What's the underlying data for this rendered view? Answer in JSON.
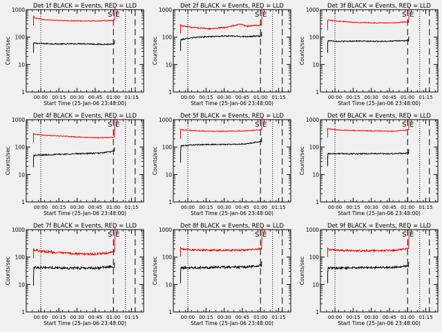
{
  "figure": {
    "background_color": "#f0f0f0",
    "events_color": "#000000",
    "lld_color": "#ff0000",
    "axis_color": "#000000"
  },
  "shared_axes": {
    "ylabel": "Counts/sec",
    "xlabel": "Start Time (25-Jan-06 23:48:00)",
    "ylog": true,
    "ylim": [
      1,
      1000
    ],
    "yticks": [
      "1",
      "10",
      "100",
      "1000"
    ],
    "xunit": "minutes since 23:48:00",
    "xlim": [
      0,
      97
    ],
    "xticks": [
      {
        "label": "00:00",
        "value": 12
      },
      {
        "label": "00:15",
        "value": 27
      },
      {
        "label": "00:30",
        "value": 42
      },
      {
        "label": "00:45",
        "value": 57
      },
      {
        "label": "01:00",
        "value": 72
      },
      {
        "label": "01:15",
        "value": 87
      }
    ]
  },
  "chart_data": [
    {
      "type": "line",
      "title": "Det 1f BLACK = Events, RED = LLD",
      "s_label": "S",
      "e_label": "E",
      "dotted_lines_x": [
        12,
        82
      ],
      "dashed_lines_x": [
        72,
        90
      ],
      "data_start_x": 6,
      "rise_x": 73,
      "series": [
        {
          "name": "Events",
          "color": "#000000",
          "start": 60,
          "x": [
            6,
            15,
            30,
            45,
            60,
            72
          ],
          "values": [
            60,
            58,
            56,
            58,
            55,
            55
          ],
          "noise": 0.05
        },
        {
          "name": "LLD",
          "color": "#ff0000",
          "start": 600,
          "x": [
            6,
            15,
            30,
            45,
            60,
            72
          ],
          "values": [
            520,
            430,
            400,
            390,
            390,
            410
          ],
          "noise": 0.03,
          "peak": 1200
        }
      ]
    },
    {
      "type": "line",
      "title": "Det 2f BLACK = Events, RED = LLD",
      "s_label": "S",
      "e_label": "E",
      "dotted_lines_x": [
        12,
        82
      ],
      "dashed_lines_x": [
        72,
        90
      ],
      "data_start_x": 6,
      "rise_x": 73,
      "series": [
        {
          "name": "Events",
          "color": "#000000",
          "start": 70,
          "x": [
            6,
            15,
            30,
            45,
            60,
            72
          ],
          "values": [
            80,
            95,
            105,
            110,
            105,
            110
          ],
          "noise": 0.05
        },
        {
          "name": "LLD",
          "color": "#ff0000",
          "start": 300,
          "x": [
            6,
            15,
            30,
            45,
            55,
            60,
            72
          ],
          "values": [
            260,
            230,
            200,
            230,
            300,
            250,
            270
          ],
          "noise": 0.05,
          "peak": 1200
        }
      ]
    },
    {
      "type": "line",
      "title": "Det 3f BLACK = Events, RED = LLD",
      "s_label": "S",
      "e_label": "E",
      "dotted_lines_x": [
        12,
        82
      ],
      "dashed_lines_x": [
        72,
        90
      ],
      "data_start_x": 6,
      "rise_x": 73,
      "series": [
        {
          "name": "Events",
          "color": "#000000",
          "start": 60,
          "x": [
            6,
            15,
            30,
            45,
            60,
            72
          ],
          "values": [
            75,
            70,
            72,
            70,
            72,
            75
          ],
          "noise": 0.04
        },
        {
          "name": "LLD",
          "color": "#ff0000",
          "start": 400,
          "x": [
            6,
            15,
            30,
            45,
            60,
            72
          ],
          "values": [
            420,
            380,
            340,
            330,
            330,
            360
          ],
          "noise": 0.03,
          "peak": 1200
        }
      ]
    },
    {
      "type": "line",
      "title": "Det 4f BLACK = Events, RED = LLD",
      "s_label": "S",
      "e_label": "E",
      "dotted_lines_x": [
        12,
        82
      ],
      "dashed_lines_x": [
        72,
        90
      ],
      "data_start_x": 6,
      "rise_x": 73,
      "series": [
        {
          "name": "Events",
          "color": "#000000",
          "start": 40,
          "x": [
            6,
            15,
            30,
            45,
            60,
            72
          ],
          "values": [
            50,
            52,
            55,
            58,
            60,
            70
          ],
          "noise": 0.05
        },
        {
          "name": "LLD",
          "color": "#ff0000",
          "start": 330,
          "x": [
            6,
            15,
            30,
            45,
            60,
            72
          ],
          "values": [
            300,
            270,
            250,
            230,
            220,
            230
          ],
          "noise": 0.03,
          "peak": 1200
        }
      ]
    },
    {
      "type": "line",
      "title": "Det 5f BLACK = Events, RED = LLD",
      "s_label": "S",
      "e_label": "E",
      "dotted_lines_x": [
        12,
        82
      ],
      "dashed_lines_x": [
        72,
        90
      ],
      "data_start_x": 6,
      "rise_x": 73,
      "series": [
        {
          "name": "Events",
          "color": "#000000",
          "start": 60,
          "x": [
            6,
            15,
            30,
            45,
            60,
            72
          ],
          "values": [
            110,
            120,
            125,
            125,
            130,
            160
          ],
          "noise": 0.04
        },
        {
          "name": "LLD",
          "color": "#ff0000",
          "start": 450,
          "x": [
            6,
            15,
            30,
            45,
            60,
            72
          ],
          "values": [
            430,
            400,
            380,
            380,
            390,
            430
          ],
          "noise": 0.03,
          "peak": 1200
        }
      ]
    },
    {
      "type": "line",
      "title": "Det 6f BLACK = Events, RED = LLD",
      "s_label": "S",
      "e_label": "E",
      "dotted_lines_x": [
        12,
        82
      ],
      "dashed_lines_x": [
        72,
        90
      ],
      "data_start_x": 6,
      "rise_x": 73,
      "series": [
        {
          "name": "Events",
          "color": "#000000",
          "start": 45,
          "x": [
            6,
            15,
            30,
            45,
            60,
            72
          ],
          "values": [
            58,
            58,
            57,
            58,
            57,
            60
          ],
          "noise": 0.05
        },
        {
          "name": "LLD",
          "color": "#ff0000",
          "start": 500,
          "x": [
            6,
            15,
            30,
            45,
            60,
            72
          ],
          "values": [
            460,
            420,
            400,
            390,
            380,
            420
          ],
          "noise": 0.03,
          "peak": 1200
        }
      ]
    },
    {
      "type": "line",
      "title": "Det 7f BLACK = Events, RED = LLD",
      "s_label": "S",
      "e_label": "E",
      "dotted_lines_x": [
        12,
        82
      ],
      "dashed_lines_x": [
        72,
        90
      ],
      "data_start_x": 6,
      "rise_x": 73,
      "series": [
        {
          "name": "Events",
          "color": "#000000",
          "start": 20,
          "x": [
            6,
            15,
            30,
            45,
            60,
            72
          ],
          "values": [
            42,
            42,
            40,
            40,
            40,
            45
          ],
          "noise": 0.1
        },
        {
          "name": "LLD",
          "color": "#ff0000",
          "start": 200,
          "x": [
            6,
            15,
            30,
            45,
            60,
            72
          ],
          "values": [
            185,
            160,
            140,
            130,
            130,
            150
          ],
          "noise": 0.09,
          "peak": 1200
        }
      ]
    },
    {
      "type": "line",
      "title": "Det 8f BLACK = Events, RED = LLD",
      "s_label": "S",
      "e_label": "E",
      "dotted_lines_x": [
        12,
        82
      ],
      "dashed_lines_x": [
        72,
        90
      ],
      "data_start_x": 6,
      "rise_x": 73,
      "series": [
        {
          "name": "Events",
          "color": "#000000",
          "start": 25,
          "x": [
            6,
            15,
            30,
            45,
            60,
            72
          ],
          "values": [
            40,
            42,
            42,
            43,
            43,
            50
          ],
          "noise": 0.1
        },
        {
          "name": "LLD",
          "color": "#ff0000",
          "start": 230,
          "x": [
            6,
            15,
            30,
            45,
            60,
            72
          ],
          "values": [
            200,
            185,
            180,
            178,
            180,
            200
          ],
          "noise": 0.07,
          "peak": 1200
        }
      ]
    },
    {
      "type": "line",
      "title": "Det 9f BLACK = Events, RED = LLD",
      "s_label": "S",
      "e_label": "E",
      "dotted_lines_x": [
        12,
        82
      ],
      "dashed_lines_x": [
        72,
        90
      ],
      "data_start_x": 6,
      "rise_x": 73,
      "series": [
        {
          "name": "Events",
          "color": "#000000",
          "start": 25,
          "x": [
            6,
            15,
            30,
            45,
            60,
            72
          ],
          "values": [
            40,
            40,
            41,
            42,
            42,
            48
          ],
          "noise": 0.08
        },
        {
          "name": "LLD",
          "color": "#ff0000",
          "start": 220,
          "x": [
            6,
            15,
            30,
            45,
            60,
            72
          ],
          "values": [
            190,
            175,
            170,
            170,
            175,
            200
          ],
          "noise": 0.07,
          "peak": 1200
        }
      ]
    }
  ]
}
